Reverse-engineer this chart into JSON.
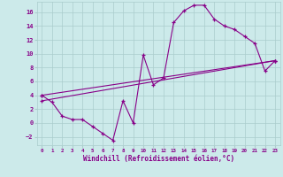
{
  "xlabel": "Windchill (Refroidissement éolien,°C)",
  "bg_color": "#cceaea",
  "grid_color": "#aacccc",
  "line_color": "#880088",
  "xlim": [
    -0.5,
    23.5
  ],
  "ylim": [
    -3.2,
    17.5
  ],
  "xticks": [
    0,
    1,
    2,
    3,
    4,
    5,
    6,
    7,
    8,
    9,
    10,
    11,
    12,
    13,
    14,
    15,
    16,
    17,
    18,
    19,
    20,
    21,
    22,
    23
  ],
  "yticks": [
    -2,
    0,
    2,
    4,
    6,
    8,
    10,
    12,
    14,
    16
  ],
  "line1_x": [
    0,
    1,
    2,
    3,
    4,
    5,
    6,
    7,
    8,
    9,
    10,
    11,
    12,
    13,
    14,
    15,
    16,
    17,
    18,
    19,
    20,
    21,
    22,
    23
  ],
  "line1_y": [
    4.0,
    3.0,
    1.0,
    0.5,
    0.5,
    -0.5,
    -1.5,
    -2.5,
    3.2,
    0.0,
    9.8,
    5.5,
    6.5,
    14.5,
    16.2,
    17.0,
    17.0,
    15.0,
    14.0,
    13.5,
    12.5,
    11.5,
    7.5,
    9.0
  ],
  "line2_x": [
    0,
    23
  ],
  "line2_y": [
    4.0,
    9.0
  ],
  "line3_x": [
    0,
    23
  ],
  "line3_y": [
    3.2,
    9.0
  ]
}
